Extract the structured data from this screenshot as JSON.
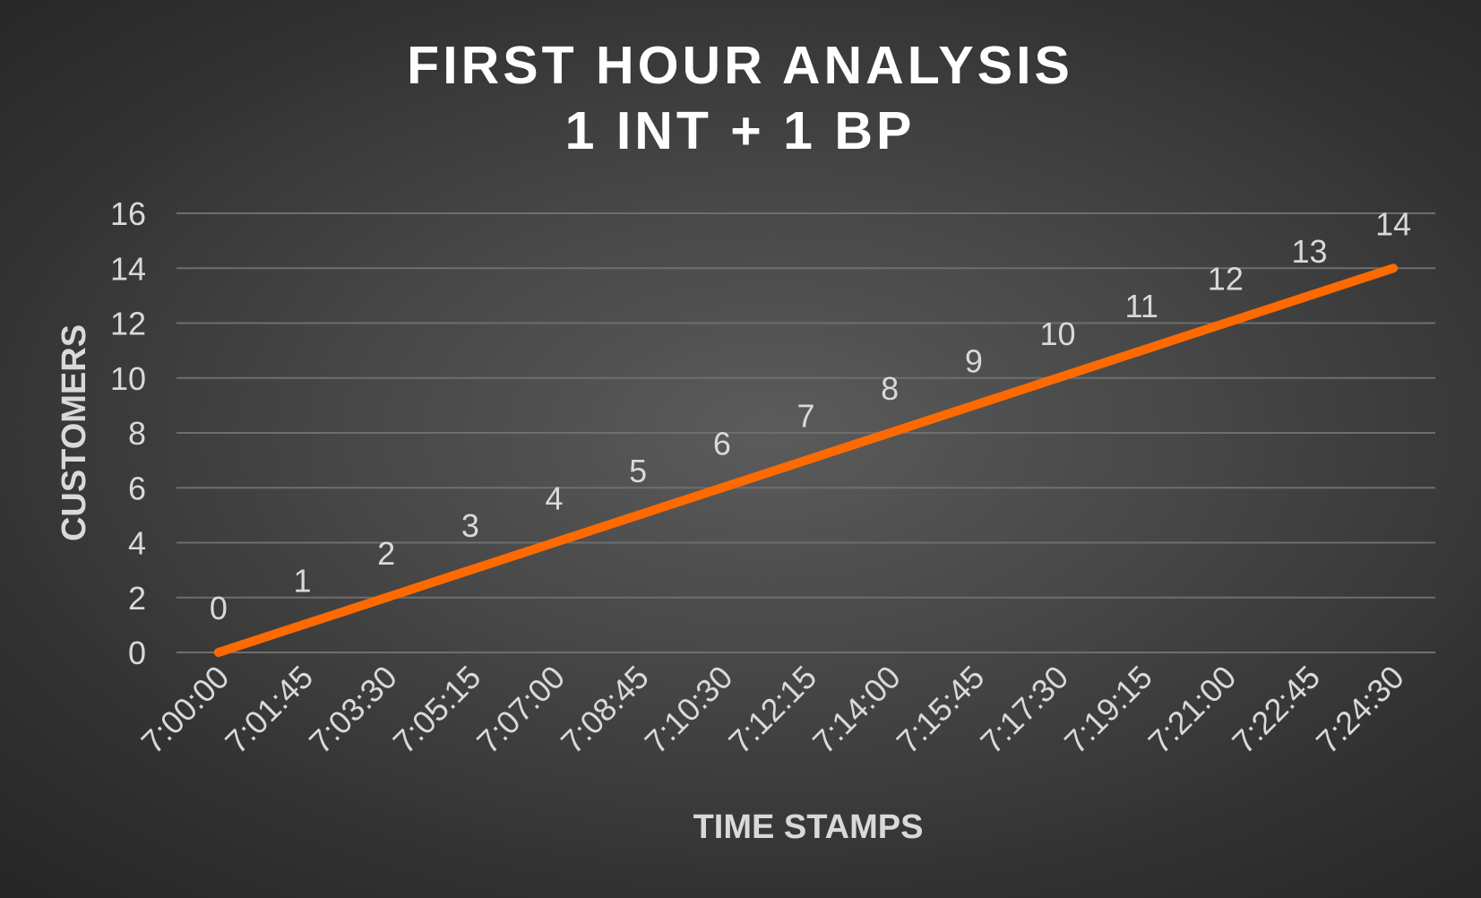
{
  "chart_data": {
    "type": "line",
    "title": [
      "FIRST HOUR ANALYSIS",
      "1 INT + 1 BP"
    ],
    "xlabel": "TIME STAMPS",
    "ylabel": "CUSTOMERS",
    "categories": [
      "7:00:00",
      "7:01:45",
      "7:03:30",
      "7:05:15",
      "7:07:00",
      "7:08:45",
      "7:10:30",
      "7:12:15",
      "7:14:00",
      "7:15:45",
      "7:17:30",
      "7:19:15",
      "7:21:00",
      "7:22:45",
      "7:24:30"
    ],
    "series": [
      {
        "values": [
          0,
          1,
          2,
          3,
          4,
          5,
          6,
          7,
          8,
          9,
          10,
          11,
          12,
          13,
          14
        ],
        "color": "#ff6a00"
      }
    ],
    "data_labels": true,
    "ylim": [
      0,
      16
    ],
    "yticks": [
      0,
      2,
      4,
      6,
      8,
      10,
      12,
      14,
      16
    ],
    "grid": true,
    "legend": "none"
  }
}
